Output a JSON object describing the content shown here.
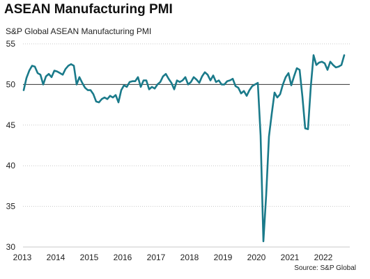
{
  "title": "ASEAN Manufacturing PMI",
  "subtitle": "S&P Global ASEAN Manufacturing PMI",
  "source": "Source: S&P Global",
  "colors": {
    "line": "#1a7a8a",
    "grid": "#c8c8c8",
    "reference": "#333333"
  },
  "chart_data": {
    "type": "line",
    "title": "ASEAN Manufacturing PMI",
    "subtitle": "S&P Global ASEAN Manufacturing PMI",
    "xlabel": "",
    "ylabel": "",
    "ylim": [
      30,
      55
    ],
    "y_ticks": [
      55,
      50,
      45,
      40,
      35,
      30
    ],
    "x_ticks": [
      "2013",
      "2014",
      "2015",
      "2016",
      "2017",
      "2018",
      "2019",
      "2020",
      "2021",
      "2022"
    ],
    "reference_line": 50,
    "grid": "horizontal dotted",
    "series": [
      {
        "values": [
          49.3,
          50.8,
          51.7,
          52.3,
          52.2,
          51.4,
          51.2,
          50.0,
          51.0,
          51.3,
          50.9,
          51.7,
          51.6,
          51.4,
          51.2,
          51.9,
          52.3,
          52.5,
          52.3,
          50.0,
          50.9,
          50.2,
          49.6,
          49.3,
          49.3,
          48.8,
          47.9,
          47.8,
          48.2,
          48.4,
          48.2,
          48.6,
          48.4,
          48.7,
          47.8,
          49.3,
          49.9,
          49.7,
          50.3,
          50.4,
          50.4,
          50.9,
          49.7,
          50.5,
          50.5,
          49.4,
          49.7,
          49.5,
          50.0,
          50.3,
          51.0,
          51.3,
          50.7,
          50.2,
          49.4,
          50.5,
          50.3,
          50.5,
          50.9,
          50.0,
          50.3,
          50.9,
          50.6,
          50.2,
          51.0,
          51.5,
          51.2,
          50.5,
          51.1,
          50.3,
          50.5,
          50.0,
          50.0,
          50.4,
          50.5,
          50.7,
          49.8,
          49.6,
          48.9,
          49.2,
          48.6,
          49.3,
          49.8,
          50.0,
          50.2,
          43.7,
          30.7,
          36.4,
          43.6,
          46.4,
          49.0,
          48.4,
          48.8,
          50.0,
          50.9,
          51.4,
          49.9,
          51.0,
          52.0,
          51.8,
          48.5,
          44.6,
          44.5,
          49.7,
          53.6,
          52.4,
          52.7,
          52.8,
          52.6,
          51.8,
          52.8,
          52.4,
          52.1,
          52.2,
          52.4,
          53.6
        ]
      }
    ],
    "start": "2013-01",
    "frequency": "monthly"
  }
}
